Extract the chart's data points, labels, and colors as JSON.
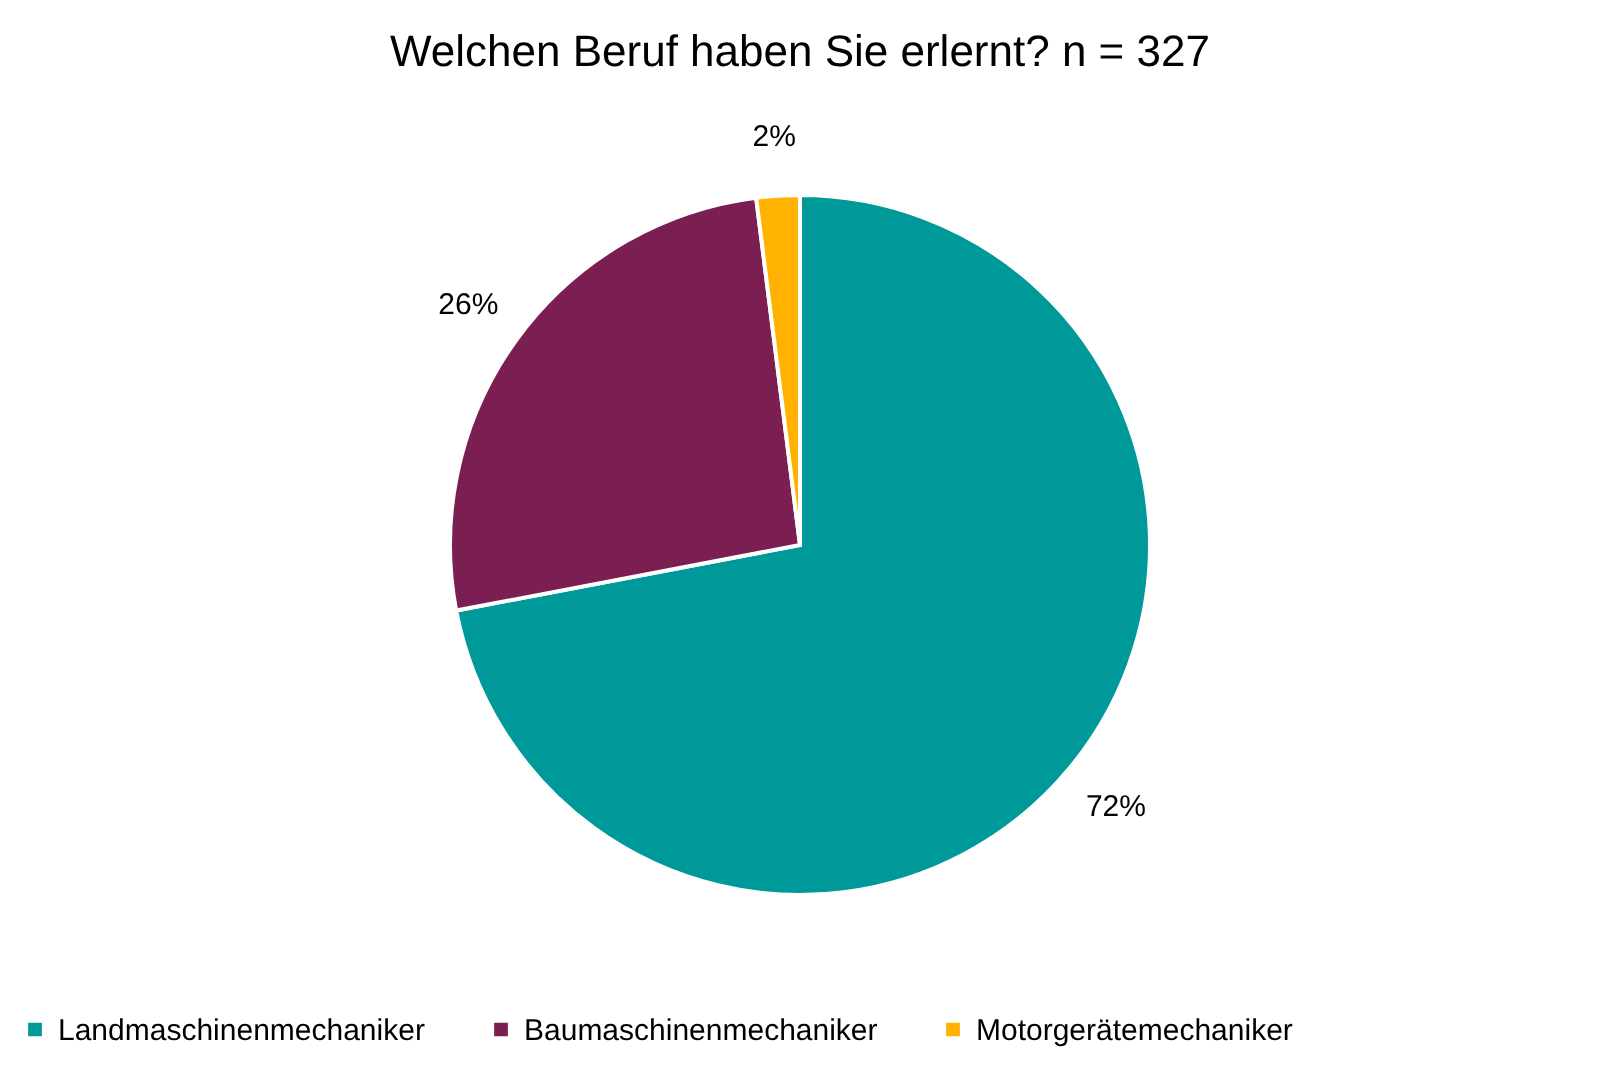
{
  "chart_data": {
    "type": "pie",
    "title": "Welchen Beruf haben Sie erlernt? n = 327",
    "categories": [
      "Landmaschinenmechaniker",
      "Baumaschinenmechaniker",
      "Motorgerätemechaniker"
    ],
    "values": [
      72,
      26,
      2
    ],
    "colors": [
      "#009999",
      "#7b1f52",
      "#ffb300"
    ],
    "value_labels": [
      "72%",
      "26%",
      "2%"
    ],
    "legend": "bottom"
  }
}
